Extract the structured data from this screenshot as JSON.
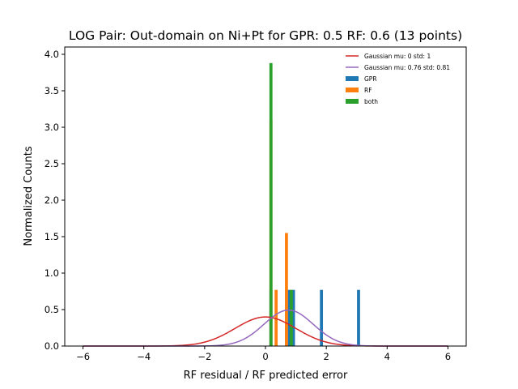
{
  "chart_data": {
    "type": "histogram",
    "title": "LOG Pair: Out-domain on Ni+Pt for GPR: 0.5 RF: 0.6 (13 points)",
    "xlabel": "RF residual / RF predicted error",
    "ylabel": "Normalized Counts",
    "xlim": [
      -6.6,
      6.6
    ],
    "ylim": [
      0,
      4.1
    ],
    "xticks": [
      -6,
      -4,
      -2,
      0,
      2,
      4,
      6
    ],
    "yticks": [
      0.0,
      0.5,
      1.0,
      1.5,
      2.0,
      2.5,
      3.0,
      3.5,
      4.0
    ],
    "ytick_labels": [
      "0.0",
      "0.5",
      "1.0",
      "1.5",
      "2.0",
      "2.5",
      "3.0",
      "3.5",
      "4.0"
    ],
    "bin_width": 0.1,
    "grid": false,
    "legend_position": "upper-right",
    "series": [
      {
        "name": "Gaussian mu: 0 std: 1",
        "kind": "line",
        "color": "#d62728",
        "mu": 0,
        "std": 1
      },
      {
        "name": "Gaussian mu: 0.76 std: 0.81",
        "kind": "line",
        "color": "#9467bd",
        "mu": 0.76,
        "std": 0.81
      },
      {
        "name": "GPR",
        "kind": "bar",
        "color": "#1f77b4",
        "bars": [
          [
            0.18,
            0.77
          ],
          [
            0.69,
            0.77
          ],
          [
            0.79,
            0.77
          ],
          [
            0.92,
            0.77
          ],
          [
            1.84,
            0.77
          ],
          [
            3.06,
            0.77
          ]
        ]
      },
      {
        "name": "RF",
        "kind": "bar",
        "color": "#ff7f0e",
        "bars": [
          [
            0.18,
            3.1
          ],
          [
            0.35,
            0.77
          ],
          [
            0.69,
            1.55
          ]
        ]
      },
      {
        "name": "both",
        "kind": "bar",
        "color": "#2ca02c",
        "bars": [
          [
            0.18,
            3.88
          ],
          [
            0.85,
            0.77
          ]
        ]
      }
    ]
  }
}
